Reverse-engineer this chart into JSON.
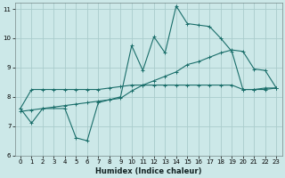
{
  "xlabel": "Humidex (Indice chaleur)",
  "xlim": [
    -0.5,
    23.5
  ],
  "ylim": [
    6,
    11.2
  ],
  "yticks": [
    6,
    7,
    8,
    9,
    10,
    11
  ],
  "xticks": [
    0,
    1,
    2,
    3,
    4,
    5,
    6,
    7,
    8,
    9,
    10,
    11,
    12,
    13,
    14,
    15,
    16,
    17,
    18,
    19,
    20,
    21,
    22,
    23
  ],
  "bg_color": "#cce8e8",
  "grid_color": "#aacccc",
  "line_color": "#1a6e6a",
  "lines": [
    {
      "x": [
        0,
        1,
        2,
        3,
        4,
        5,
        6,
        7,
        8,
        9,
        10,
        11,
        12,
        13,
        14,
        15,
        16,
        17,
        18,
        19,
        20,
        21,
        22,
        23
      ],
      "y": [
        7.6,
        8.25,
        8.25,
        8.25,
        8.25,
        8.25,
        8.25,
        8.25,
        8.3,
        8.35,
        8.4,
        8.4,
        8.4,
        8.4,
        8.4,
        8.4,
        8.4,
        8.4,
        8.4,
        8.4,
        8.25,
        8.25,
        8.25,
        8.3
      ]
    },
    {
      "x": [
        0,
        1,
        2,
        4,
        5,
        6,
        7,
        8,
        9,
        10,
        11,
        12,
        13,
        14,
        15,
        16,
        17,
        18,
        19,
        20,
        21,
        22,
        23
      ],
      "y": [
        7.6,
        7.1,
        7.6,
        7.6,
        6.6,
        6.5,
        7.8,
        7.9,
        8.0,
        9.75,
        8.9,
        10.05,
        9.5,
        11.1,
        10.5,
        10.45,
        10.4,
        10.0,
        9.55,
        8.25,
        8.25,
        8.3,
        8.3
      ]
    },
    {
      "x": [
        0,
        1,
        2,
        3,
        4,
        5,
        6,
        7,
        8,
        9,
        10,
        11,
        12,
        13,
        14,
        15,
        16,
        17,
        18,
        19,
        20,
        21,
        22,
        23
      ],
      "y": [
        7.5,
        7.55,
        7.6,
        7.65,
        7.7,
        7.75,
        7.8,
        7.85,
        7.9,
        7.95,
        8.2,
        8.4,
        8.55,
        8.7,
        8.85,
        9.1,
        9.2,
        9.35,
        9.5,
        9.6,
        9.55,
        8.95,
        8.9,
        8.3
      ]
    }
  ]
}
